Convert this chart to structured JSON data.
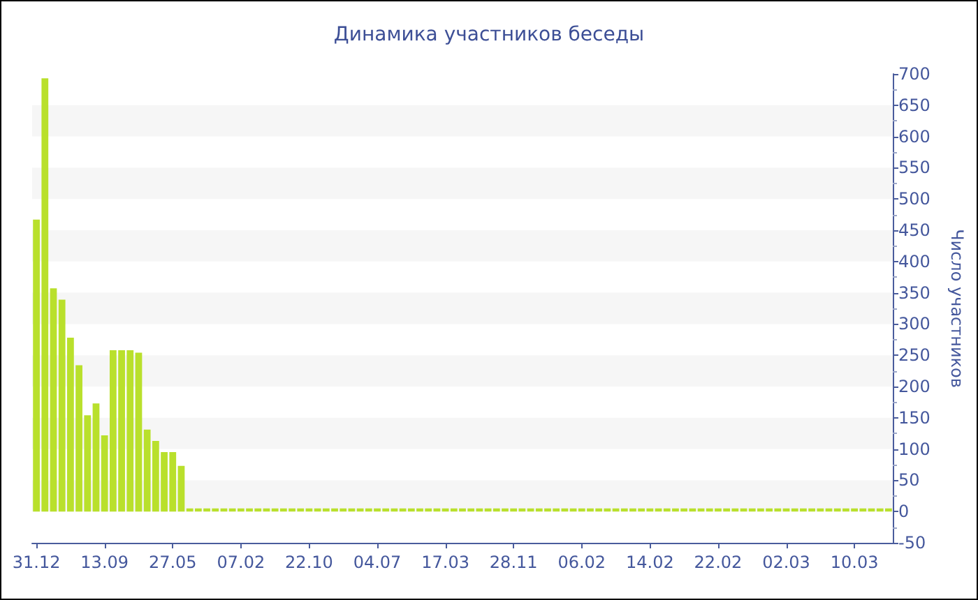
{
  "chart_data": {
    "type": "bar",
    "title": "Динамика участников беседы",
    "ylabel": "Число участников",
    "categories": [
      "31.12",
      null,
      null,
      null,
      null,
      null,
      null,
      null,
      "13.09",
      null,
      null,
      null,
      null,
      null,
      null,
      null,
      "27.05",
      null,
      null,
      null,
      null,
      null,
      null,
      null,
      "07.02",
      null,
      null,
      null,
      null,
      null,
      null,
      null,
      "22.10",
      null,
      null,
      null,
      null,
      null,
      null,
      null,
      "04.07",
      null,
      null,
      null,
      null,
      null,
      null,
      null,
      "17.03",
      null,
      null,
      null,
      null,
      null,
      null,
      null,
      "28.11",
      null,
      null,
      null,
      null,
      null,
      null,
      null,
      "06.02",
      null,
      null,
      null,
      null,
      null,
      null,
      null,
      "14.02",
      null,
      null,
      null,
      null,
      null,
      null,
      null,
      "22.02",
      null,
      null,
      null,
      null,
      null,
      null,
      null,
      "02.03",
      null,
      null,
      null,
      null,
      null,
      null,
      null,
      "10.03",
      null,
      null,
      null,
      null
    ],
    "values": [
      467,
      693,
      357,
      339,
      278,
      234,
      154,
      173,
      122,
      258,
      258,
      258,
      254,
      131,
      113,
      95,
      95,
      73,
      5,
      5,
      5,
      5,
      5,
      5,
      5,
      5,
      5,
      5,
      5,
      5,
      5,
      5,
      5,
      5,
      5,
      5,
      5,
      5,
      5,
      5,
      5,
      5,
      5,
      5,
      5,
      5,
      5,
      5,
      5,
      5,
      5,
      5,
      5,
      5,
      5,
      5,
      5,
      5,
      5,
      5,
      5,
      5,
      5,
      5,
      5,
      5,
      5,
      5,
      5,
      5,
      5,
      5,
      5,
      5,
      5,
      5,
      5,
      5,
      5,
      5,
      5,
      5,
      5,
      5,
      5,
      5,
      5,
      5,
      5,
      5,
      5,
      5,
      5,
      5,
      5,
      5,
      5,
      5,
      5,
      5,
      5
    ],
    "color": "#b9e02c",
    "ylim": [
      -50,
      700
    ],
    "yticks": [
      -50,
      0,
      50,
      100,
      150,
      200,
      250,
      300,
      350,
      400,
      450,
      500,
      550,
      600,
      650,
      700
    ],
    "bands": [
      {
        "axis": "y",
        "from": 0,
        "to": 50,
        "color": "#f6f6f6"
      },
      {
        "axis": "y",
        "from": 100,
        "to": 150,
        "color": "#f6f6f6"
      },
      {
        "axis": "y",
        "from": 200,
        "to": 250,
        "color": "#f6f6f6"
      },
      {
        "axis": "y",
        "from": 300,
        "to": 350,
        "color": "#f6f6f6"
      },
      {
        "axis": "y",
        "from": 400,
        "to": 450,
        "color": "#f6f6f6"
      },
      {
        "axis": "y",
        "from": 500,
        "to": 550,
        "color": "#f6f6f6"
      },
      {
        "axis": "y",
        "from": 600,
        "to": 650,
        "color": "#f6f6f6"
      }
    ]
  }
}
